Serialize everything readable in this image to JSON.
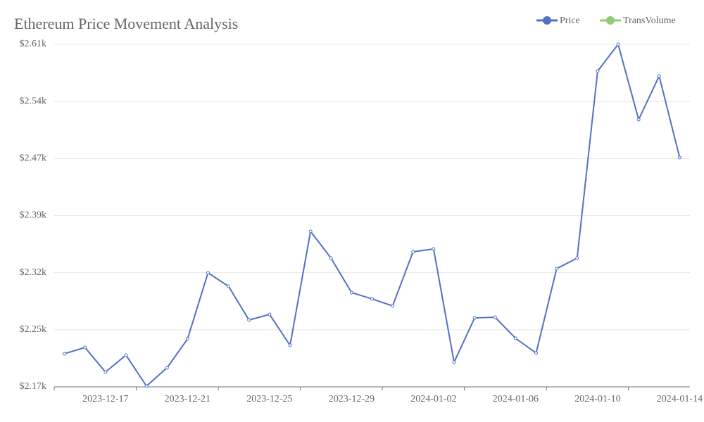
{
  "chart_data": {
    "type": "line",
    "title": "Ethereum Price Movement Analysis",
    "categories": [
      null,
      null,
      "2023-12-17",
      null,
      null,
      null,
      "2023-12-21",
      null,
      null,
      null,
      "2023-12-25",
      null,
      null,
      null,
      "2023-12-29",
      null,
      null,
      null,
      "2024-01-02",
      null,
      null,
      null,
      "2024-01-06",
      null,
      null,
      null,
      "2024-01-10",
      null,
      null,
      null,
      "2024-01-14"
    ],
    "series": [
      {
        "name": "Price",
        "color": "#5470c6",
        "values": [
          2214.5,
          2222.6,
          2191,
          2212.7,
          2173,
          2196.4,
          2233.4,
          2318.4,
          2301.2,
          2257.8,
          2265.1,
          2225.3,
          2371.7,
          2337.3,
          2293.1,
          2285,
          2275.9,
          2345.5,
          2349.1,
          2203.6,
          2260.5,
          2261.4,
          2234.3,
          2215.4,
          2323.8,
          2337.3,
          2577.7,
          2612,
          2515.3,
          2571.3,
          2466.5
        ]
      }
    ],
    "legend": [
      {
        "name": "Price",
        "color": "#5470c6"
      },
      {
        "name": "TransVolume",
        "color": "#91cc75"
      }
    ],
    "ylim": [
      2172,
      2612
    ],
    "yticks": [
      {
        "value": 2172,
        "label": "$2.17k"
      },
      {
        "value": 2245.3,
        "label": "$2.25k"
      },
      {
        "value": 2318.7,
        "label": "$2.32k"
      },
      {
        "value": 2392,
        "label": "$2.39k"
      },
      {
        "value": 2465.3,
        "label": "$2.47k"
      },
      {
        "value": 2538.7,
        "label": "$2.54k"
      },
      {
        "value": 2612,
        "label": "$2.61k"
      }
    ],
    "grid": true
  }
}
